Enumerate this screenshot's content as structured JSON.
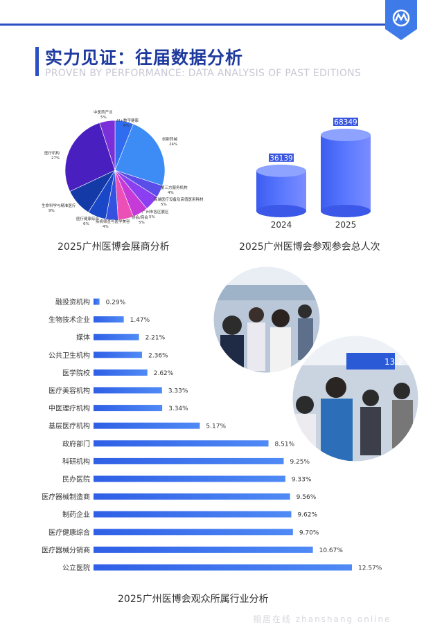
{
  "header": {
    "title": "实力见证：往届数据分析",
    "subtitle": "PROVEN BY PERFORMANCE: DATA ANALYSIS OF PAST EDITIONS"
  },
  "colors": {
    "accent": "#2b4fc4",
    "bar": "#3b66f0"
  },
  "chart_data": [
    {
      "type": "pie",
      "title": "2025广州医博会展商分析",
      "slices": [
        {
          "label": "AI+数字健康",
          "value": 6,
          "display": "6%",
          "color": "#2f6cf0"
        },
        {
          "label": "创新药械",
          "value": 24,
          "display": "24%",
          "color": "#3d8cf5"
        },
        {
          "label": "第三方服务机构",
          "value": 4,
          "display": "4%",
          "color": "#5b4ee8"
        },
        {
          "label": "高端医疗设备及高值医用耗材",
          "value": 5,
          "display": "5%",
          "color": "#8a3ff0"
        },
        {
          "label": "广州市各区展区",
          "value": 5,
          "display": "5%",
          "color": "#c63ad8"
        },
        {
          "label": "协会/商会",
          "value": 5,
          "display": "5%",
          "color": "#ec4fb5"
        },
        {
          "label": "疾病筛查与医学美容",
          "value": 4,
          "display": "4%",
          "color": "#3452e0"
        },
        {
          "label": "医疗健康综合",
          "value": 6,
          "display": "6%",
          "color": "#1a46c8"
        },
        {
          "label": "生命科学与精准医疗",
          "value": 9,
          "display": "9%",
          "color": "#143aa8"
        },
        {
          "label": "医疗机构",
          "value": 27,
          "display": "27%",
          "color": "#4a1fc0"
        },
        {
          "label": "中医药产业",
          "value": 5,
          "display": "5%",
          "color": "#7a2fd8"
        }
      ]
    },
    {
      "type": "bar",
      "title": "2025广州医博会参观参会总人次",
      "categories": [
        "2024",
        "2025"
      ],
      "values": [
        36139,
        68349
      ]
    },
    {
      "type": "bar",
      "orientation": "horizontal",
      "title": "2025广州医博会观众所属行业分析",
      "categories": [
        "融投资机构",
        "生物技术企业",
        "媒体",
        "公共卫生机构",
        "医学院校",
        "医疗美容机构",
        "中医理疗机构",
        "基层医疗机构",
        "政府部门",
        "科研机构",
        "民办医院",
        "医疗器械制造商",
        "制药企业",
        "医疗健康综合",
        "医疗器械分销商",
        "公立医院"
      ],
      "values": [
        0.29,
        1.47,
        2.21,
        2.36,
        2.62,
        3.33,
        3.34,
        5.17,
        8.51,
        9.25,
        9.33,
        9.56,
        9.62,
        9.7,
        10.67,
        12.57
      ],
      "value_labels": [
        "0.29%",
        "1.47%",
        "2.21%",
        "2.36%",
        "2.62%",
        "3.33%",
        "3.34%",
        "5.17%",
        "8.51%",
        "9.25%",
        "9.33%",
        "9.56%",
        "9.62%",
        "9.70%",
        "10.67%",
        "12.57%"
      ]
    }
  ],
  "photo": {
    "sign_text": "13.2"
  },
  "footer": {
    "watermark": "相居在线 zhanshang online"
  }
}
